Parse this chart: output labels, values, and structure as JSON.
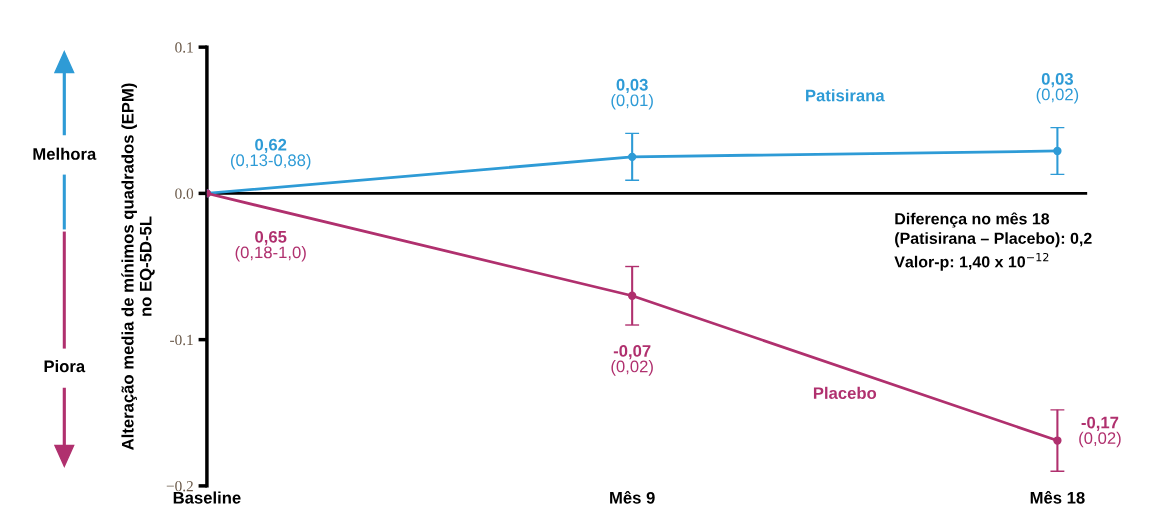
{
  "chart_data": {
    "type": "line",
    "ylabel": "Alteração media de mínimos quadrados (EPM)\nno EQ-5D-5L",
    "categories": [
      "Baseline",
      "Mês 9",
      "Mês 18"
    ],
    "series": [
      {
        "name": "Patisirana",
        "color": "#2e9bd6",
        "values": [
          0,
          0.025,
          0.029
        ],
        "errors": [
          null,
          0.016,
          0.016
        ],
        "value_labels": [
          null,
          "0,03\n(0,01)",
          "0,03\n(0,02)"
        ]
      },
      {
        "name": "Placebo",
        "color": "#b0306e",
        "values": [
          0,
          -0.07,
          -0.169
        ],
        "errors": [
          null,
          0.02,
          0.021
        ],
        "value_labels": [
          null,
          "-0,07\n(0,02)",
          "-0,17\n(0,02)"
        ]
      }
    ],
    "ylim": [
      -0.2,
      0.1
    ],
    "yticks": [
      {
        "value": 0.1,
        "label": "0.1"
      },
      {
        "value": 0,
        "label": "0.0"
      },
      {
        "value": -0.1,
        "label": "-0.1"
      },
      {
        "value": -0.2,
        "label": "−0.2"
      }
    ],
    "ref_lines": [
      {
        "axis": "y",
        "value": 0,
        "color": "#000000"
      }
    ],
    "annotations": [
      {
        "text": "0,62\n(0,13-0,88)",
        "x": "Baseline",
        "y": 0
      },
      {
        "text": "0,65\n(0,18-1,0)",
        "x": "Baseline",
        "y": 0
      },
      "Melhora",
      "Piora",
      "Diferença no mês 18\n(Patisirana – Placebo): 0,2\nValor-p: 1,40 x 10$^{−12}$"
    ],
    "marker": "circle",
    "line_style": "solid",
    "grid": false,
    "legend": false
  }
}
